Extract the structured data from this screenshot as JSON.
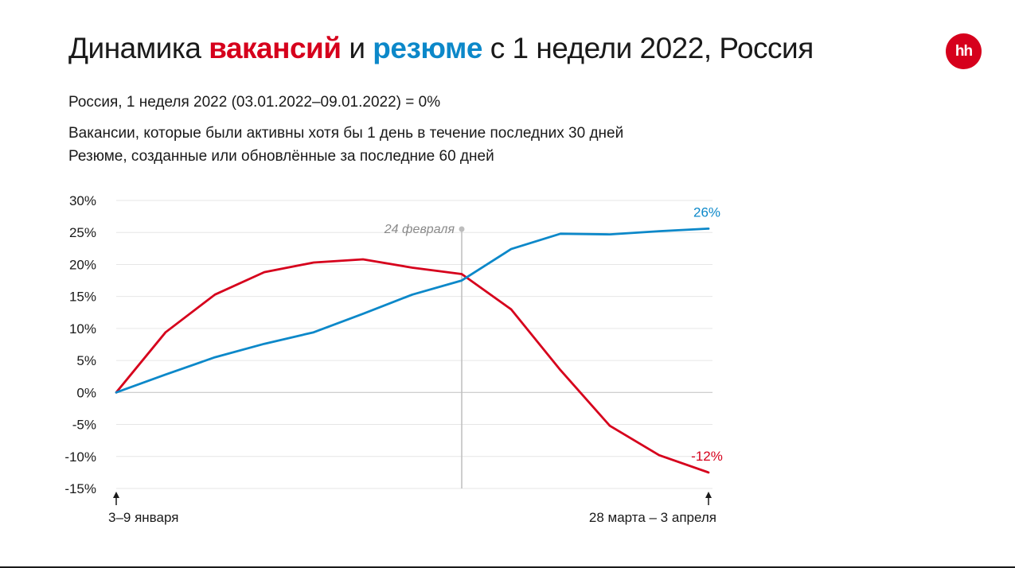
{
  "header": {
    "title_part1": "Динамика ",
    "title_vacancies": "вакансий",
    "title_part2": " и ",
    "title_resumes": "резюме",
    "title_part3": " с 1 недели 2022, Россия",
    "subtitle_base": "Россия, 1 неделя 2022 (03.01.2022–09.01.2022) = 0%",
    "note_vacancies": "Вакансии, которые были активны хотя бы 1 день в течение последних 30 дней",
    "note_resumes": "Резюме, созданные или обновлённые за последние 60 дней"
  },
  "logo": {
    "text": "hh"
  },
  "colors": {
    "vacancies": "#d6001c",
    "resumes": "#0c88c9",
    "grid": "#e6e6e6",
    "axis": "#c8c8c8",
    "event_line": "#bdbdbd",
    "event_label": "#8a8a8a"
  },
  "chart_data": {
    "type": "line",
    "title": "Динамика вакансий и резюме с 1 недели 2022, Россия",
    "x": [
      1,
      2,
      3,
      4,
      5,
      6,
      7,
      8,
      9,
      10,
      11,
      12,
      13
    ],
    "ylim": [
      -15,
      30
    ],
    "yticks": [
      30,
      25,
      20,
      15,
      10,
      5,
      0,
      -5,
      -10,
      -15
    ],
    "ytick_labels": [
      "30%",
      "25%",
      "20%",
      "15%",
      "10%",
      "5%",
      "0%",
      "-5%",
      "-10%",
      "-15%"
    ],
    "series": [
      {
        "name": "Вакансии",
        "color": "#d6001c",
        "values": [
          0,
          9.4,
          15.3,
          18.8,
          20.3,
          20.8,
          19.5,
          18.5,
          13.0,
          3.5,
          -5.2,
          -9.8,
          -12.5
        ],
        "end_label": "-12%"
      },
      {
        "name": "Резюме",
        "color": "#0c88c9",
        "values": [
          0,
          2.8,
          5.5,
          7.6,
          9.4,
          12.3,
          15.3,
          17.5,
          22.4,
          24.8,
          24.7,
          25.2,
          25.6
        ],
        "end_label": "26%"
      }
    ],
    "event": {
      "x": 8,
      "label": "24 февраля"
    },
    "x_annotations": [
      {
        "x": 1,
        "label": "3–9 января"
      },
      {
        "x": 13,
        "label": "28 марта – 3 апреля"
      }
    ],
    "grid": true
  }
}
